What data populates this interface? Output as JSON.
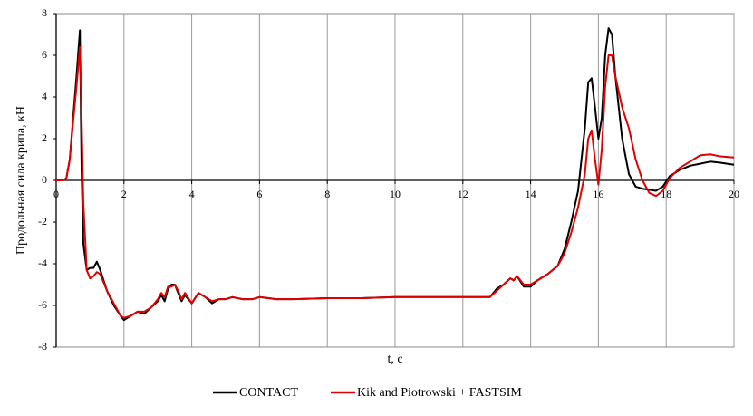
{
  "chart_data": {
    "type": "line",
    "y_label": "Продольная сила крипа, кН",
    "x_label": "t, c",
    "x": [
      0,
      0.2,
      0.3,
      0.4,
      0.5,
      0.6,
      0.7,
      0.75,
      0.8,
      0.9,
      1.0,
      1.1,
      1.2,
      1.3,
      1.5,
      1.7,
      1.9,
      2.0,
      2.2,
      2.4,
      2.6,
      2.8,
      3.0,
      3.1,
      3.2,
      3.3,
      3.4,
      3.5,
      3.6,
      3.7,
      3.8,
      4.0,
      4.2,
      4.4,
      4.6,
      4.8,
      5.0,
      5.2,
      5.5,
      5.8,
      6.0,
      6.5,
      7,
      8,
      9,
      10,
      11,
      12,
      12.8,
      13.0,
      13.2,
      13.4,
      13.5,
      13.6,
      13.8,
      14.0,
      14.2,
      14.5,
      14.8,
      15.0,
      15.2,
      15.4,
      15.6,
      15.7,
      15.8,
      15.9,
      16.0,
      16.1,
      16.2,
      16.3,
      16.4,
      16.5,
      16.7,
      16.9,
      17.1,
      17.3,
      17.5,
      17.7,
      17.9,
      18.1,
      18.4,
      18.7,
      19.0,
      19.3,
      19.6,
      20
    ],
    "series": [
      {
        "name": "CONTACT",
        "color": "#000000",
        "values": [
          0,
          0,
          0.1,
          1,
          3,
          5,
          7.2,
          0.5,
          -3,
          -4.3,
          -4.2,
          -4.2,
          -3.9,
          -4.3,
          -5.3,
          -6,
          -6.5,
          -6.7,
          -6.5,
          -6.3,
          -6.4,
          -6.1,
          -5.8,
          -5.5,
          -5.8,
          -5.2,
          -5.0,
          -5.0,
          -5.4,
          -5.8,
          -5.5,
          -5.9,
          -5.4,
          -5.6,
          -5.9,
          -5.7,
          -5.7,
          -5.6,
          -5.7,
          -5.7,
          -5.6,
          -5.7,
          -5.7,
          -5.65,
          -5.65,
          -5.6,
          -5.6,
          -5.6,
          -5.6,
          -5.2,
          -5.0,
          -4.7,
          -4.8,
          -4.6,
          -5.1,
          -5.1,
          -4.8,
          -4.5,
          -4.1,
          -3.3,
          -2,
          -0.5,
          2.5,
          4.7,
          4.9,
          3.5,
          2.0,
          3,
          6,
          7.3,
          7,
          5,
          2,
          0.3,
          -0.3,
          -0.4,
          -0.45,
          -0.5,
          -0.3,
          0.2,
          0.5,
          0.7,
          0.8,
          0.9,
          0.85,
          0.75
        ]
      },
      {
        "name": "Kik and Piotrowski + FASTSIM",
        "color": "#e00000",
        "values": [
          0,
          0,
          0.1,
          1,
          2.8,
          4.5,
          6.4,
          3,
          -1,
          -4.3,
          -4.7,
          -4.6,
          -4.4,
          -4.5,
          -5.3,
          -5.9,
          -6.5,
          -6.6,
          -6.5,
          -6.3,
          -6.3,
          -6.1,
          -5.7,
          -5.4,
          -5.6,
          -5.1,
          -5.1,
          -5.0,
          -5.3,
          -5.7,
          -5.4,
          -5.9,
          -5.4,
          -5.6,
          -5.8,
          -5.7,
          -5.7,
          -5.6,
          -5.7,
          -5.7,
          -5.6,
          -5.7,
          -5.7,
          -5.65,
          -5.65,
          -5.6,
          -5.6,
          -5.6,
          -5.6,
          -5.3,
          -5.0,
          -4.7,
          -4.8,
          -4.6,
          -5.0,
          -5.0,
          -4.8,
          -4.5,
          -4.1,
          -3.5,
          -2.5,
          -1.3,
          0.3,
          2,
          2.4,
          1,
          -0.2,
          1.5,
          4.5,
          6,
          6,
          5,
          3.5,
          2.5,
          1,
          0,
          -0.6,
          -0.75,
          -0.5,
          0.1,
          0.6,
          0.9,
          1.2,
          1.25,
          1.15,
          1.1
        ]
      }
    ],
    "xlim": [
      0,
      20
    ],
    "xticks": [
      0,
      2,
      4,
      6,
      8,
      10,
      12,
      14,
      16,
      18,
      20
    ],
    "ylim": [
      -8,
      8
    ],
    "yticks": [
      -8,
      -6,
      -4,
      -2,
      0,
      2,
      4,
      6,
      8
    ],
    "grid": true,
    "legend": "bottom"
  }
}
